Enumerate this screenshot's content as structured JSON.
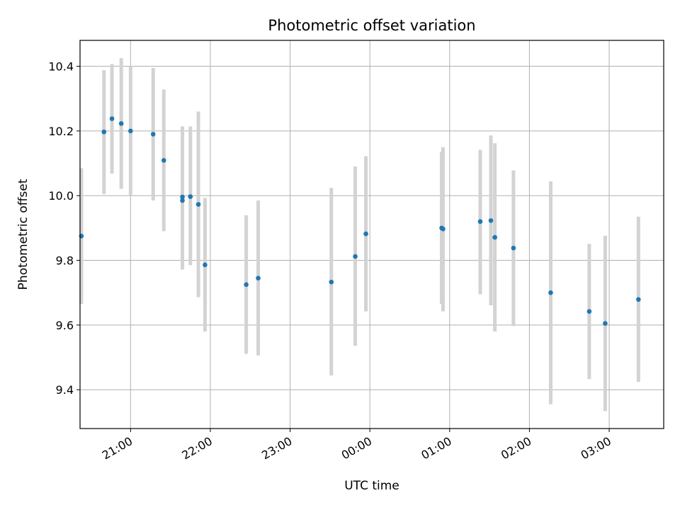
{
  "chart_data": {
    "type": "scatter",
    "title": "Photometric offset variation",
    "xlabel": "UTC time",
    "ylabel": "Photometric offset",
    "x_is_time": true,
    "xlim": [
      "20:22",
      "03:41"
    ],
    "ylim": [
      9.28,
      10.48
    ],
    "x_ticks": [
      "21:00",
      "22:00",
      "23:00",
      "00:00",
      "01:00",
      "02:00",
      "03:00"
    ],
    "y_ticks": [
      "9.4",
      "9.6",
      "9.8",
      "10.0",
      "10.2",
      "10.4"
    ],
    "grid": true,
    "legend": "none",
    "colors": {
      "point": "#1f77b4",
      "errorbar": "#d3d3d3",
      "grid": "#b0b0b0"
    },
    "points": [
      {
        "x": "20:23",
        "y": 9.875,
        "lo": 9.665,
        "hi": 10.085
      },
      {
        "x": "20:40",
        "y": 10.197,
        "lo": 10.005,
        "hi": 10.388
      },
      {
        "x": "20:46",
        "y": 10.238,
        "lo": 10.068,
        "hi": 10.407
      },
      {
        "x": "20:53",
        "y": 10.223,
        "lo": 10.021,
        "hi": 10.425
      },
      {
        "x": "21:00",
        "y": 10.2,
        "lo": 10.0,
        "hi": 10.4
      },
      {
        "x": "21:17",
        "y": 10.19,
        "lo": 9.985,
        "hi": 10.395
      },
      {
        "x": "21:25",
        "y": 10.109,
        "lo": 9.89,
        "hi": 10.328
      },
      {
        "x": "21:39",
        "y": 9.996,
        "lo": 9.772,
        "hi": 10.214
      },
      {
        "x": "21:39",
        "y": 9.985,
        "lo": 9.772,
        "hi": 10.214
      },
      {
        "x": "21:45",
        "y": 9.997,
        "lo": 9.785,
        "hi": 10.214
      },
      {
        "x": "21:51",
        "y": 9.973,
        "lo": 9.686,
        "hi": 10.26
      },
      {
        "x": "21:56",
        "y": 9.786,
        "lo": 9.58,
        "hi": 9.993
      },
      {
        "x": "22:27",
        "y": 9.725,
        "lo": 9.511,
        "hi": 9.939
      },
      {
        "x": "22:36",
        "y": 9.745,
        "lo": 9.506,
        "hi": 9.985
      },
      {
        "x": "23:31",
        "y": 9.733,
        "lo": 9.444,
        "hi": 10.024
      },
      {
        "x": "23:49",
        "y": 9.812,
        "lo": 9.536,
        "hi": 10.09
      },
      {
        "x": "23:57",
        "y": 9.882,
        "lo": 9.642,
        "hi": 10.122
      },
      {
        "x": "00:54",
        "y": 9.9,
        "lo": 9.665,
        "hi": 10.135
      },
      {
        "x": "00:55",
        "y": 9.897,
        "lo": 9.642,
        "hi": 10.15
      },
      {
        "x": "01:23",
        "y": 9.92,
        "lo": 9.695,
        "hi": 10.142
      },
      {
        "x": "01:31",
        "y": 9.923,
        "lo": 9.661,
        "hi": 10.186
      },
      {
        "x": "01:34",
        "y": 9.871,
        "lo": 9.58,
        "hi": 10.162
      },
      {
        "x": "01:48",
        "y": 9.838,
        "lo": 9.597,
        "hi": 10.078
      },
      {
        "x": "02:16",
        "y": 9.7,
        "lo": 9.355,
        "hi": 10.044
      },
      {
        "x": "02:45",
        "y": 9.642,
        "lo": 9.433,
        "hi": 9.851
      },
      {
        "x": "02:57",
        "y": 9.605,
        "lo": 9.334,
        "hi": 9.876
      },
      {
        "x": "03:22",
        "y": 9.679,
        "lo": 9.424,
        "hi": 9.935
      }
    ]
  }
}
